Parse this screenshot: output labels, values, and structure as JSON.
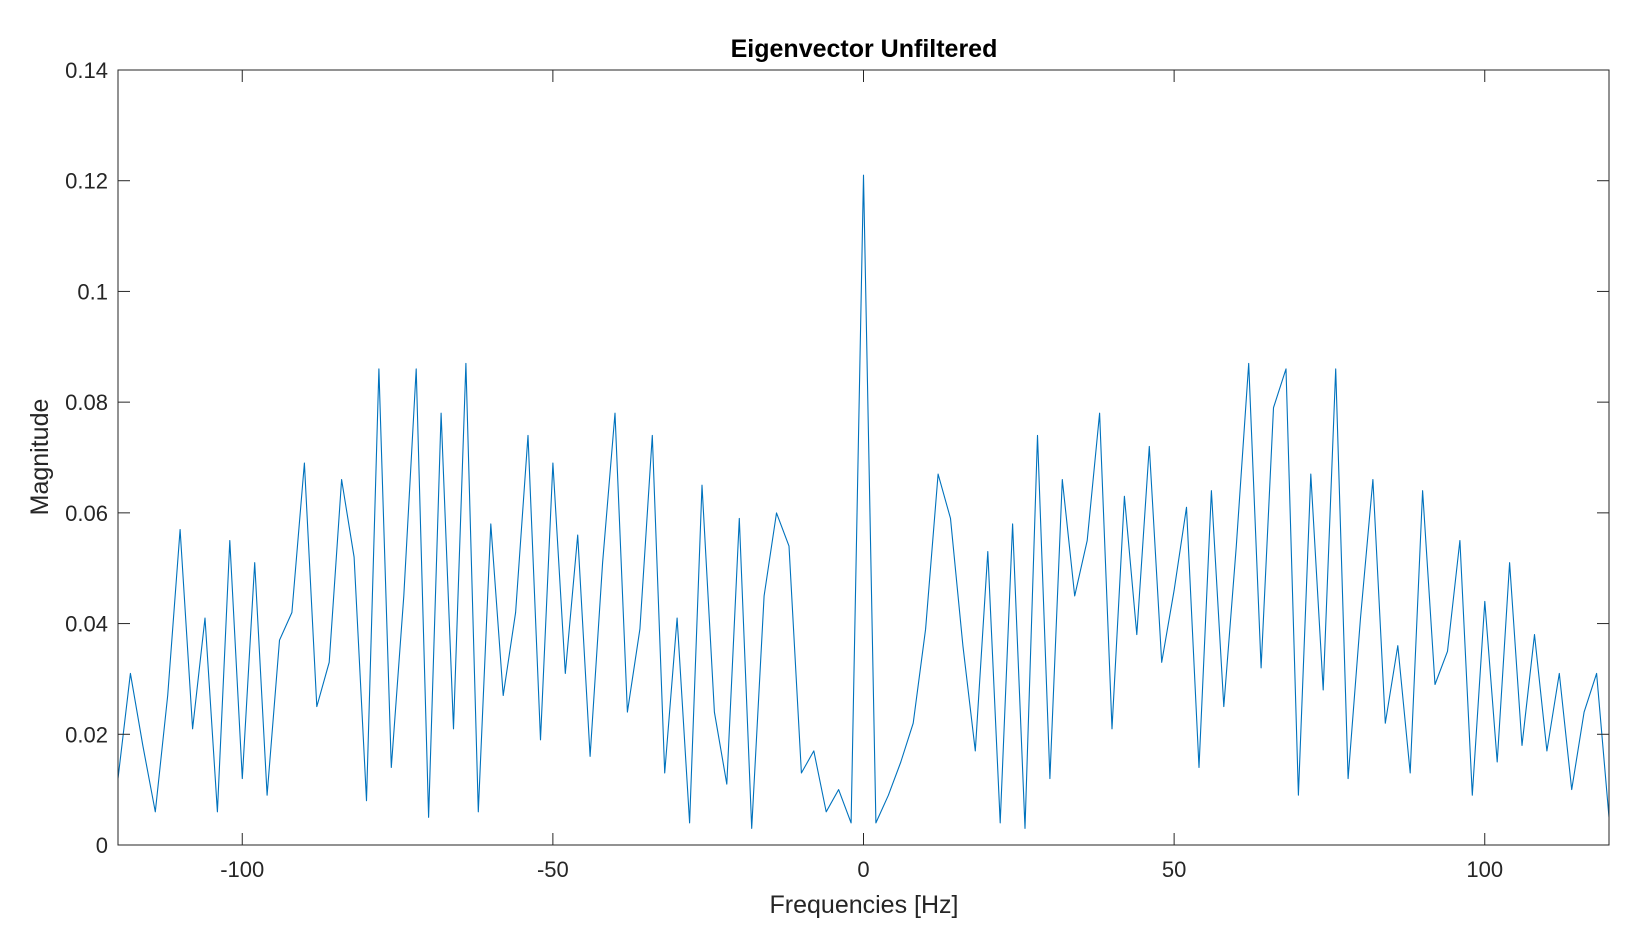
{
  "chart_data": {
    "type": "line",
    "title": "Eigenvector Unfiltered",
    "xlabel": "Frequencies [Hz]",
    "ylabel": "Magnitude",
    "xlim": [
      -120,
      120
    ],
    "ylim": [
      0,
      0.14
    ],
    "xticks": [
      -100,
      -50,
      0,
      50,
      100
    ],
    "xtick_labels": [
      "-100",
      "-50",
      "0",
      "50",
      "100"
    ],
    "yticks": [
      0,
      0.02,
      0.04,
      0.06,
      0.08,
      0.1,
      0.12,
      0.14
    ],
    "ytick_labels": [
      "0",
      "0.02",
      "0.04",
      "0.06",
      "0.08",
      "0.1",
      "0.12",
      "0.14"
    ],
    "grid": false,
    "box": true,
    "line_color": "#0072BD",
    "axis_color": "#262626",
    "series": [
      {
        "x": [
          -120,
          -118,
          -116,
          -114,
          -112,
          -110,
          -108,
          -106,
          -104,
          -102,
          -100,
          -98,
          -96,
          -94,
          -92,
          -90,
          -88,
          -86,
          -84,
          -82,
          -80,
          -78,
          -76,
          -74,
          -72,
          -70,
          -68,
          -66,
          -64,
          -62,
          -60,
          -58,
          -56,
          -54,
          -52,
          -50,
          -48,
          -46,
          -44,
          -42,
          -40,
          -38,
          -36,
          -34,
          -32,
          -30,
          -28,
          -26,
          -24,
          -22,
          -20,
          -18,
          -16,
          -14,
          -12,
          -10,
          -8,
          -6,
          -4,
          -2,
          0,
          2,
          4,
          6,
          8,
          10,
          12,
          14,
          16,
          18,
          20,
          22,
          24,
          26,
          28,
          30,
          32,
          34,
          36,
          38,
          40,
          42,
          44,
          46,
          48,
          50,
          52,
          54,
          56,
          58,
          60,
          62,
          64,
          66,
          68,
          70,
          72,
          74,
          76,
          78,
          80,
          82,
          84,
          86,
          88,
          90,
          92,
          94,
          96,
          98,
          100,
          102,
          104,
          106,
          108,
          110,
          112,
          114,
          116,
          118,
          120
        ],
        "y": [
          0.012,
          0.031,
          0.018,
          0.006,
          0.027,
          0.057,
          0.021,
          0.041,
          0.006,
          0.055,
          0.012,
          0.051,
          0.009,
          0.037,
          0.042,
          0.069,
          0.025,
          0.033,
          0.066,
          0.052,
          0.008,
          0.086,
          0.014,
          0.045,
          0.086,
          0.005,
          0.078,
          0.021,
          0.087,
          0.006,
          0.058,
          0.027,
          0.042,
          0.074,
          0.019,
          0.069,
          0.031,
          0.056,
          0.016,
          0.051,
          0.078,
          0.024,
          0.039,
          0.074,
          0.013,
          0.041,
          0.004,
          0.065,
          0.024,
          0.011,
          0.059,
          0.003,
          0.045,
          0.06,
          0.054,
          0.013,
          0.017,
          0.006,
          0.01,
          0.004,
          0.121,
          0.004,
          0.009,
          0.015,
          0.022,
          0.039,
          0.067,
          0.059,
          0.036,
          0.017,
          0.053,
          0.004,
          0.058,
          0.003,
          0.074,
          0.012,
          0.066,
          0.045,
          0.055,
          0.078,
          0.021,
          0.063,
          0.038,
          0.072,
          0.033,
          0.046,
          0.061,
          0.014,
          0.064,
          0.025,
          0.054,
          0.087,
          0.032,
          0.079,
          0.086,
          0.009,
          0.067,
          0.028,
          0.086,
          0.012,
          0.041,
          0.066,
          0.022,
          0.036,
          0.013,
          0.064,
          0.029,
          0.035,
          0.055,
          0.009,
          0.044,
          0.015,
          0.051,
          0.018,
          0.038,
          0.017,
          0.031,
          0.01,
          0.024,
          0.031,
          0.005
        ]
      }
    ]
  }
}
